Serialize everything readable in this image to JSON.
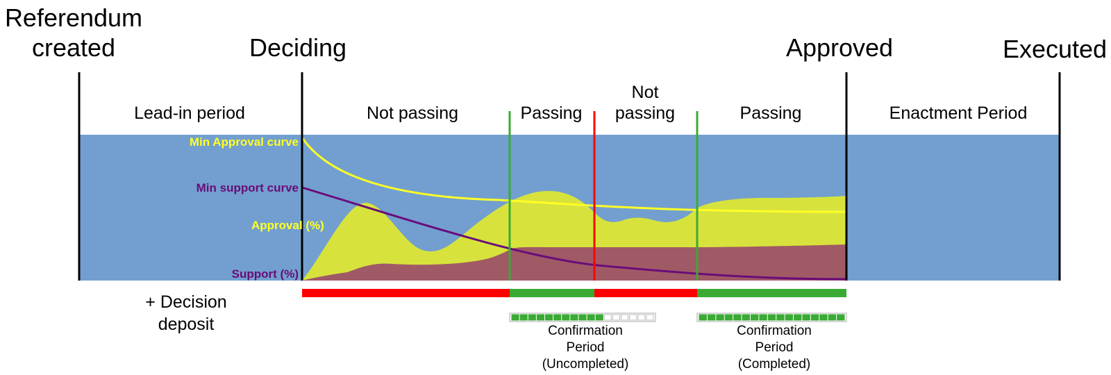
{
  "milestones": {
    "created": [
      "Referendum",
      "created"
    ],
    "deciding": "Deciding",
    "approved": "Approved",
    "executed": "Executed"
  },
  "periods": {
    "lead_in": "Lead-in period",
    "not_passing_1": "Not passing",
    "passing_1": "Passing",
    "not_passing_2": [
      "Not",
      "passing"
    ],
    "passing_2": "Passing",
    "enactment": "Enactment Period"
  },
  "curves": {
    "min_approval": "Min Approval curve",
    "min_support": "Min support curve",
    "approval": "Approval (%)",
    "support": "Support (%)"
  },
  "deposit": [
    "+ Decision",
    "deposit"
  ],
  "confirmation": {
    "uncompleted": {
      "lines": [
        "Confirmation",
        "Period",
        "(Uncompleted)"
      ],
      "filled": 11,
      "total": 17
    },
    "completed": {
      "lines": [
        "Confirmation",
        "Period",
        "(Completed)"
      ],
      "filled": 17,
      "total": 17
    }
  },
  "status_bar": [
    "not-passing",
    "passing",
    "not-passing",
    "passing"
  ],
  "colors": {
    "background": "#729fcf",
    "approval_fill": "#d7e33c",
    "support_fill": "#a05a66",
    "min_approval_line": "#ffff26",
    "min_support_line": "#6a0c7a",
    "passing": "#3aaa35",
    "not_passing": "#ff0000",
    "approval_label": "#ffff26",
    "support_label": "#6a0c7a"
  }
}
